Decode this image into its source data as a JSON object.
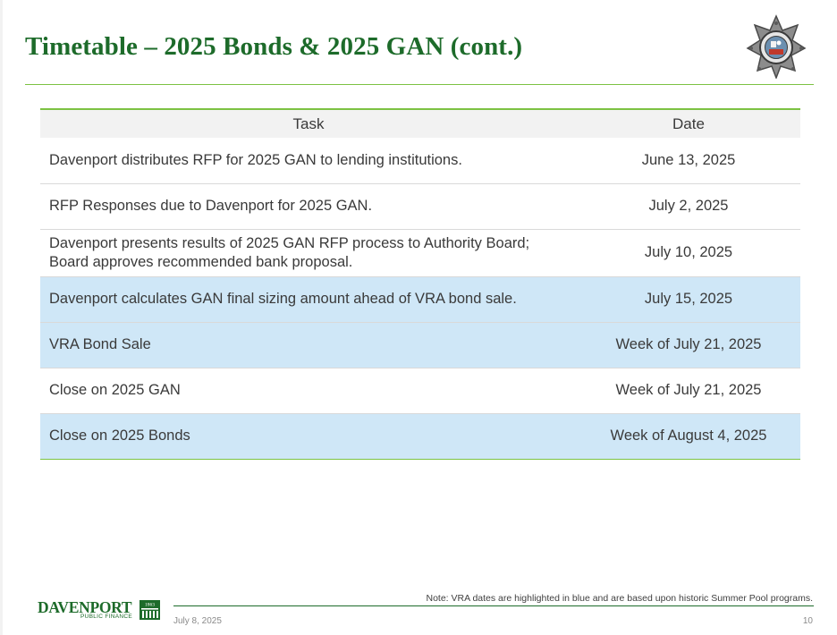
{
  "slide": {
    "title": "Timetable – 2025 Bonds & 2025 GAN (cont.)"
  },
  "table": {
    "headers": {
      "task": "Task",
      "date": "Date"
    },
    "rows": [
      {
        "task": "Davenport distributes RFP for 2025 GAN to lending institutions.",
        "date": "June 13, 2025",
        "highlight": false
      },
      {
        "task": "RFP Responses due to Davenport for 2025 GAN.",
        "date": "July 2, 2025",
        "highlight": false
      },
      {
        "task_line1": "Davenport presents results of 2025 GAN RFP process to Authority Board;",
        "task_line2": "Board approves recommended bank proposal.",
        "date": "July 10, 2025",
        "highlight": false
      },
      {
        "task": "Davenport calculates GAN final sizing amount ahead of VRA bond sale.",
        "date": "July 15, 2025",
        "highlight": true
      },
      {
        "task": "VRA Bond Sale",
        "date": "Week of July 21, 2025",
        "highlight": true
      },
      {
        "task": "Close on 2025 GAN",
        "date": "Week of July 21, 2025",
        "highlight": false
      },
      {
        "task": "Close on 2025 Bonds",
        "date": "Week of August 4, 2025",
        "highlight": true
      }
    ]
  },
  "footer": {
    "logo_word": "DAVENPORT",
    "logo_sub": "PUBLIC FINANCE",
    "logo_year": "1863",
    "note": "Note: VRA dates are highlighted in blue and are based upon historic Summer Pool programs.",
    "date": "July 8, 2025",
    "page_number": "10"
  },
  "icons": {
    "badge": "sheriff-star-badge-icon",
    "logo_mark": "bridge-logo-icon"
  },
  "colors": {
    "brand_green": "#1d6b2a",
    "accent_green": "#7cc242",
    "vra_highlight": "#cfe7f7",
    "header_fill": "#f2f2f2"
  }
}
